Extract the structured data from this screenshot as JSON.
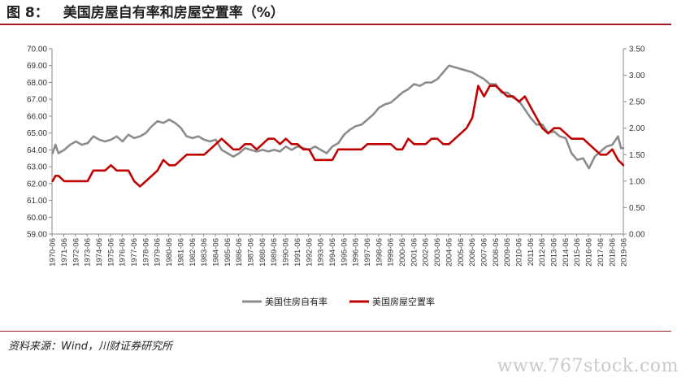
{
  "header": {
    "figure_number": "图 8：",
    "title": "美国房屋自有率和房屋空置率（%）"
  },
  "source": "资料来源：Wind，川财证券研究所",
  "watermark": "www.767stock.com",
  "colors": {
    "ownership": "#8c8c8c",
    "vacancy": "#c00000",
    "accent": "#a31d21"
  },
  "chart_data": {
    "type": "line",
    "left_axis": {
      "ylim": [
        59,
        70
      ],
      "ticks": [
        "59.00",
        "60.00",
        "61.00",
        "62.00",
        "63.00",
        "64.00",
        "65.00",
        "66.00",
        "67.00",
        "68.00",
        "69.00",
        "70.00"
      ]
    },
    "right_axis": {
      "ylim": [
        0,
        3.5
      ],
      "ticks": [
        "0.00",
        "0.50",
        "1.00",
        "1.50",
        "2.00",
        "2.50",
        "3.00",
        "3.50"
      ]
    },
    "x_ticks": [
      "1970-06",
      "1971-06",
      "1972-06",
      "1973-06",
      "1974-06",
      "1975-06",
      "1976-06",
      "1977-06",
      "1978-06",
      "1979-06",
      "1980-06",
      "1981-06",
      "1982-06",
      "1983-06",
      "1984-06",
      "1985-06",
      "1986-06",
      "1987-06",
      "1988-06",
      "1989-06",
      "1990-06",
      "1991-06",
      "1992-06",
      "1993-06",
      "1994-06",
      "1995-06",
      "1996-06",
      "1997-06",
      "1998-06",
      "1999-06",
      "2000-06",
      "2001-06",
      "2002-06",
      "2003-06",
      "2004-06",
      "2005-06",
      "2006-06",
      "2007-06",
      "2008-06",
      "2009-06",
      "2010-06",
      "2011-06",
      "2012-06",
      "2013-06",
      "2014-06",
      "2015-06",
      "2016-06",
      "2017-06",
      "2018-06",
      "2019-06"
    ],
    "x_range": [
      1970.45,
      2019.45
    ],
    "series": [
      {
        "name": "美国住房自有率",
        "axis": "left",
        "points": [
          [
            1970.5,
            63.8
          ],
          [
            1970.75,
            64.3
          ],
          [
            1971.0,
            63.8
          ],
          [
            1971.5,
            64.0
          ],
          [
            1972.0,
            64.3
          ],
          [
            1972.5,
            64.5
          ],
          [
            1973.0,
            64.3
          ],
          [
            1973.5,
            64.4
          ],
          [
            1974.0,
            64.8
          ],
          [
            1974.5,
            64.6
          ],
          [
            1975.0,
            64.5
          ],
          [
            1975.5,
            64.6
          ],
          [
            1976.0,
            64.8
          ],
          [
            1976.5,
            64.5
          ],
          [
            1977.0,
            64.9
          ],
          [
            1977.5,
            64.7
          ],
          [
            1978.0,
            64.8
          ],
          [
            1978.5,
            65.0
          ],
          [
            1979.0,
            65.4
          ],
          [
            1979.5,
            65.7
          ],
          [
            1980.0,
            65.6
          ],
          [
            1980.5,
            65.8
          ],
          [
            1981.0,
            65.6
          ],
          [
            1981.5,
            65.3
          ],
          [
            1982.0,
            64.8
          ],
          [
            1982.5,
            64.7
          ],
          [
            1983.0,
            64.8
          ],
          [
            1983.5,
            64.6
          ],
          [
            1984.0,
            64.5
          ],
          [
            1984.5,
            64.6
          ],
          [
            1985.0,
            64.0
          ],
          [
            1985.5,
            63.8
          ],
          [
            1986.0,
            63.6
          ],
          [
            1986.5,
            63.8
          ],
          [
            1987.0,
            64.1
          ],
          [
            1987.5,
            64.0
          ],
          [
            1988.0,
            63.9
          ],
          [
            1988.5,
            64.0
          ],
          [
            1989.0,
            63.9
          ],
          [
            1989.5,
            64.0
          ],
          [
            1990.0,
            63.9
          ],
          [
            1990.5,
            64.2
          ],
          [
            1991.0,
            64.0
          ],
          [
            1991.5,
            64.2
          ],
          [
            1992.0,
            64.1
          ],
          [
            1992.5,
            64.0
          ],
          [
            1993.0,
            64.2
          ],
          [
            1993.5,
            64.0
          ],
          [
            1994.0,
            63.8
          ],
          [
            1994.5,
            64.2
          ],
          [
            1995.0,
            64.4
          ],
          [
            1995.5,
            64.9
          ],
          [
            1996.0,
            65.2
          ],
          [
            1996.5,
            65.4
          ],
          [
            1997.0,
            65.5
          ],
          [
            1997.5,
            65.8
          ],
          [
            1998.0,
            66.1
          ],
          [
            1998.5,
            66.5
          ],
          [
            1999.0,
            66.7
          ],
          [
            1999.5,
            66.8
          ],
          [
            2000.0,
            67.1
          ],
          [
            2000.5,
            67.4
          ],
          [
            2001.0,
            67.6
          ],
          [
            2001.5,
            67.9
          ],
          [
            2002.0,
            67.8
          ],
          [
            2002.5,
            68.0
          ],
          [
            2003.0,
            68.0
          ],
          [
            2003.5,
            68.2
          ],
          [
            2004.0,
            68.6
          ],
          [
            2004.5,
            69.0
          ],
          [
            2005.0,
            68.9
          ],
          [
            2005.5,
            68.8
          ],
          [
            2006.0,
            68.7
          ],
          [
            2006.5,
            68.6
          ],
          [
            2007.0,
            68.4
          ],
          [
            2007.5,
            68.2
          ],
          [
            2008.0,
            67.9
          ],
          [
            2008.5,
            67.9
          ],
          [
            2009.0,
            67.4
          ],
          [
            2009.5,
            67.4
          ],
          [
            2010.0,
            67.1
          ],
          [
            2010.5,
            66.9
          ],
          [
            2011.0,
            66.4
          ],
          [
            2011.5,
            65.9
          ],
          [
            2012.0,
            65.5
          ],
          [
            2012.5,
            65.5
          ],
          [
            2013.0,
            65.0
          ],
          [
            2013.5,
            65.1
          ],
          [
            2014.0,
            64.8
          ],
          [
            2014.5,
            64.7
          ],
          [
            2015.0,
            63.8
          ],
          [
            2015.5,
            63.4
          ],
          [
            2016.0,
            63.5
          ],
          [
            2016.5,
            62.9
          ],
          [
            2017.0,
            63.6
          ],
          [
            2017.5,
            63.9
          ],
          [
            2018.0,
            64.2
          ],
          [
            2018.5,
            64.3
          ],
          [
            2019.0,
            64.8
          ],
          [
            2019.25,
            64.1
          ],
          [
            2019.45,
            64.1
          ]
        ]
      },
      {
        "name": "美国房屋空置率",
        "axis": "right",
        "points": [
          [
            1970.5,
            1.0
          ],
          [
            1970.75,
            1.1
          ],
          [
            1971.0,
            1.1
          ],
          [
            1971.5,
            1.0
          ],
          [
            1972.0,
            1.0
          ],
          [
            1972.5,
            1.0
          ],
          [
            1973.0,
            1.0
          ],
          [
            1973.5,
            1.0
          ],
          [
            1974.0,
            1.2
          ],
          [
            1974.5,
            1.2
          ],
          [
            1975.0,
            1.2
          ],
          [
            1975.5,
            1.3
          ],
          [
            1976.0,
            1.2
          ],
          [
            1976.5,
            1.2
          ],
          [
            1977.0,
            1.2
          ],
          [
            1977.5,
            1.0
          ],
          [
            1978.0,
            0.9
          ],
          [
            1978.5,
            1.0
          ],
          [
            1979.0,
            1.1
          ],
          [
            1979.5,
            1.2
          ],
          [
            1980.0,
            1.4
          ],
          [
            1980.5,
            1.3
          ],
          [
            1981.0,
            1.3
          ],
          [
            1981.5,
            1.4
          ],
          [
            1982.0,
            1.5
          ],
          [
            1982.5,
            1.5
          ],
          [
            1983.0,
            1.5
          ],
          [
            1983.5,
            1.5
          ],
          [
            1984.0,
            1.6
          ],
          [
            1984.5,
            1.7
          ],
          [
            1985.0,
            1.8
          ],
          [
            1985.5,
            1.7
          ],
          [
            1986.0,
            1.6
          ],
          [
            1986.5,
            1.6
          ],
          [
            1987.0,
            1.7
          ],
          [
            1987.5,
            1.7
          ],
          [
            1988.0,
            1.6
          ],
          [
            1988.5,
            1.7
          ],
          [
            1989.0,
            1.8
          ],
          [
            1989.5,
            1.8
          ],
          [
            1990.0,
            1.7
          ],
          [
            1990.5,
            1.8
          ],
          [
            1991.0,
            1.7
          ],
          [
            1991.5,
            1.7
          ],
          [
            1992.0,
            1.6
          ],
          [
            1992.5,
            1.6
          ],
          [
            1993.0,
            1.4
          ],
          [
            1993.5,
            1.4
          ],
          [
            1994.0,
            1.4
          ],
          [
            1994.5,
            1.4
          ],
          [
            1995.0,
            1.6
          ],
          [
            1995.5,
            1.6
          ],
          [
            1996.0,
            1.6
          ],
          [
            1996.5,
            1.6
          ],
          [
            1997.0,
            1.6
          ],
          [
            1997.5,
            1.7
          ],
          [
            1998.0,
            1.7
          ],
          [
            1998.5,
            1.7
          ],
          [
            1999.0,
            1.7
          ],
          [
            1999.5,
            1.7
          ],
          [
            2000.0,
            1.6
          ],
          [
            2000.5,
            1.6
          ],
          [
            2001.0,
            1.8
          ],
          [
            2001.5,
            1.7
          ],
          [
            2002.0,
            1.7
          ],
          [
            2002.5,
            1.7
          ],
          [
            2003.0,
            1.8
          ],
          [
            2003.5,
            1.8
          ],
          [
            2004.0,
            1.7
          ],
          [
            2004.5,
            1.7
          ],
          [
            2005.0,
            1.8
          ],
          [
            2005.5,
            1.9
          ],
          [
            2006.0,
            2.0
          ],
          [
            2006.5,
            2.2
          ],
          [
            2007.0,
            2.8
          ],
          [
            2007.5,
            2.6
          ],
          [
            2008.0,
            2.8
          ],
          [
            2008.5,
            2.8
          ],
          [
            2009.0,
            2.7
          ],
          [
            2009.5,
            2.6
          ],
          [
            2010.0,
            2.6
          ],
          [
            2010.5,
            2.5
          ],
          [
            2011.0,
            2.6
          ],
          [
            2011.5,
            2.4
          ],
          [
            2012.0,
            2.2
          ],
          [
            2012.5,
            2.0
          ],
          [
            2013.0,
            1.9
          ],
          [
            2013.5,
            2.0
          ],
          [
            2014.0,
            2.0
          ],
          [
            2014.5,
            1.9
          ],
          [
            2015.0,
            1.8
          ],
          [
            2015.5,
            1.8
          ],
          [
            2016.0,
            1.8
          ],
          [
            2016.5,
            1.7
          ],
          [
            2017.0,
            1.6
          ],
          [
            2017.5,
            1.5
          ],
          [
            2018.0,
            1.5
          ],
          [
            2018.5,
            1.6
          ],
          [
            2019.0,
            1.4
          ],
          [
            2019.45,
            1.3
          ]
        ]
      }
    ],
    "legend": {
      "placement": "bottom-center"
    },
    "grid": false
  }
}
